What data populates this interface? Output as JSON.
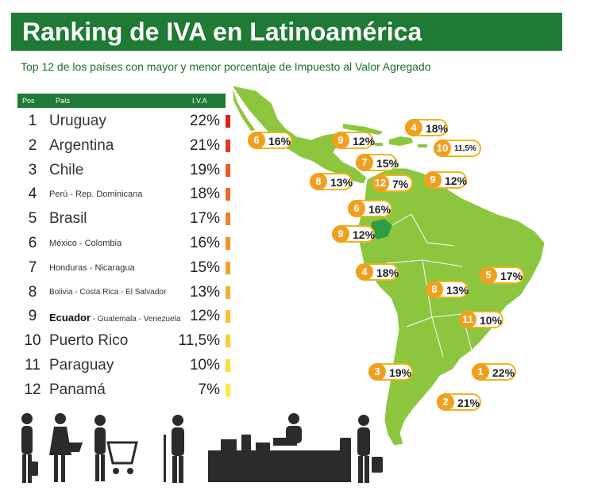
{
  "title": "Ranking de IVA en Latinoamérica",
  "subtitle": "Top 12 de los países con mayor y menor porcentaje de  Impuesto al Valor Agregado",
  "table": {
    "headers": [
      "Pos",
      "País",
      "I.V.A"
    ]
  },
  "colors": {
    "banner": "#1e7a34",
    "map": "#8cc63f",
    "ecuador": "#2e9b45",
    "badge": "#f0a020"
  },
  "chart_data": {
    "type": "table",
    "columns": [
      "Pos",
      "País",
      "I.V.A"
    ],
    "rows": [
      {
        "pos": 1,
        "country": "Uruguay",
        "iva": "22%",
        "value": 22,
        "color": "#d9201f"
      },
      {
        "pos": 2,
        "country": "Argentina",
        "iva": "21%",
        "value": 21,
        "color": "#e03a22"
      },
      {
        "pos": 3,
        "country": "Chile",
        "iva": "19%",
        "value": 19,
        "color": "#e55b23"
      },
      {
        "pos": 4,
        "country": "Perú - Rep. Dominicana",
        "iva": "18%",
        "value": 18,
        "color": "#ea6d25"
      },
      {
        "pos": 5,
        "country": "Brasil",
        "iva": "17%",
        "value": 17,
        "color": "#ee8026"
      },
      {
        "pos": 6,
        "country": "México - Colombia",
        "iva": "16%",
        "value": 16,
        "color": "#f19128"
      },
      {
        "pos": 7,
        "country": "Honduras - Nicaragua",
        "iva": "15%",
        "value": 15,
        "color": "#f3a02a"
      },
      {
        "pos": 8,
        "country": "Bolivia - Costa Rica - El Salvador",
        "iva": "13%",
        "value": 13,
        "color": "#f5b12c"
      },
      {
        "pos": 9,
        "country_bold": "Ecuador",
        "country": " - Guatemala - Venezuela",
        "iva": "12%",
        "value": 12,
        "color": "#f7c12f"
      },
      {
        "pos": 10,
        "country": "Puerto Rico",
        "iva": "11,5%",
        "value": 11.5,
        "color": "#f9cf33"
      },
      {
        "pos": 11,
        "country": "Paraguay",
        "iva": "10%",
        "value": 10,
        "color": "#fbdc38"
      },
      {
        "pos": 12,
        "country": "Panamá",
        "iva": "7%",
        "value": 7,
        "color": "#fde840"
      }
    ]
  },
  "map_badges": [
    {
      "pos": "6",
      "iva": "16%",
      "region": "mexico"
    },
    {
      "pos": "9",
      "iva": "12%",
      "region": "guatemala"
    },
    {
      "pos": "4",
      "iva": "18%",
      "region": "rep-dominicana"
    },
    {
      "pos": "10",
      "iva": "11,5%",
      "region": "puerto-rico"
    },
    {
      "pos": "7",
      "iva": "15%",
      "region": "honduras"
    },
    {
      "pos": "8",
      "iva": "13%",
      "region": "el-salvador"
    },
    {
      "pos": "12",
      "iva": "7%",
      "region": "panama"
    },
    {
      "pos": "9",
      "iva": "12%",
      "region": "venezuela"
    },
    {
      "pos": "6",
      "iva": "16%",
      "region": "colombia"
    },
    {
      "pos": "9",
      "iva": "12%",
      "region": "ecuador"
    },
    {
      "pos": "4",
      "iva": "18%",
      "region": "peru"
    },
    {
      "pos": "8",
      "iva": "13%",
      "region": "bolivia"
    },
    {
      "pos": "5",
      "iva": "17%",
      "region": "brasil"
    },
    {
      "pos": "11",
      "iva": "10%",
      "region": "paraguay"
    },
    {
      "pos": "3",
      "iva": "19%",
      "region": "chile"
    },
    {
      "pos": "1",
      "iva": "22%",
      "region": "uruguay"
    },
    {
      "pos": "2",
      "iva": "21%",
      "region": "argentina"
    }
  ]
}
